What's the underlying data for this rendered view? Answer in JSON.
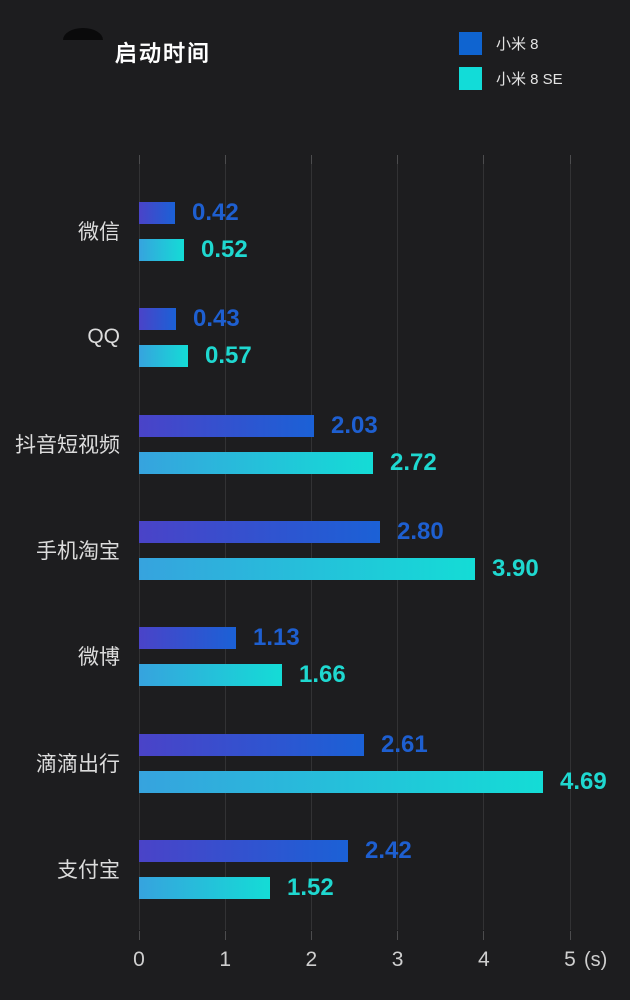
{
  "header": {
    "title": "启动时间",
    "legend": [
      {
        "label": "小米 8",
        "color": "#0f64d0"
      },
      {
        "label": "小米 8 SE",
        "color": "#12dcd8"
      }
    ]
  },
  "chart_data": {
    "type": "bar",
    "orientation": "horizontal",
    "title": "启动时间",
    "categories": [
      "微信",
      "QQ",
      "抖音短视频",
      "手机淘宝",
      "微博",
      "滴滴出行",
      "支付宝"
    ],
    "series": [
      {
        "name": "小米 8",
        "values": [
          0.42,
          0.43,
          2.03,
          2.8,
          1.13,
          2.61,
          2.42
        ],
        "value_labels": [
          "0.42",
          "0.43",
          "2.03",
          "2.80",
          "1.13",
          "2.61",
          "2.42"
        ],
        "gradient_start": "#4a43c8",
        "gradient_end": "#1b61d6",
        "label_color": "#1e5fd0"
      },
      {
        "name": "小米 8 SE",
        "values": [
          0.52,
          0.57,
          2.72,
          3.9,
          1.66,
          4.69,
          1.52
        ],
        "value_labels": [
          "0.52",
          "0.57",
          "2.72",
          "3.90",
          "1.66",
          "4.69",
          "1.52"
        ],
        "gradient_start": "#36a3de",
        "gradient_end": "#14dcd6",
        "label_color": "#1fd8d0"
      }
    ],
    "xlim": [
      0,
      5
    ],
    "x_ticks": [
      "0",
      "1",
      "2",
      "3",
      "4",
      "5"
    ],
    "x_unit": "(s)",
    "grid": true,
    "legend_position": "top-right",
    "background_color": "#1d1d1f",
    "gridline_color": "#323234"
  }
}
